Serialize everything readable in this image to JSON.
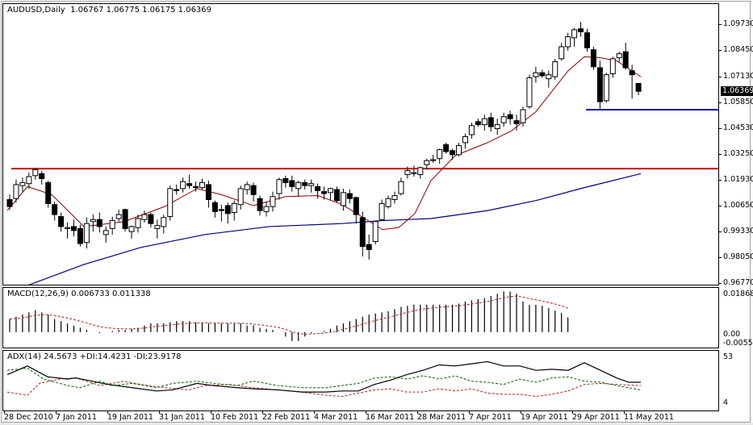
{
  "header": {
    "symbol": "AUDUSD,Daily",
    "ohlc": "1.06767 1.06775 1.06175 1.06369",
    "full_label": "AUDUSD,Daily  1.06767 1.06775 1.06175 1.06369"
  },
  "main_axis": {
    "labels": [
      "1.09730",
      "1.08450",
      "1.07130",
      "1.05850",
      "1.04530",
      "1.03250",
      "1.01930",
      "1.00650",
      "0.99330",
      "0.98050",
      "0.96770"
    ],
    "current_price": "1.06369"
  },
  "macd": {
    "label": "MACD(12,26,9) 0.006733 0.011338",
    "axis_labels": [
      "0.018682",
      "0.00",
      "-0.00556"
    ]
  },
  "adx": {
    "label": "ADX(14) 24.5673 +DI:14.4231 -DI:23.9178",
    "axis_labels": [
      "53",
      "4"
    ]
  },
  "x_axis": {
    "labels": [
      "28 Dec 2010",
      "7 Jan 2011",
      "19 Jan 2011",
      "31 Jan 2011",
      "10 Feb 2011",
      "22 Feb 2011",
      "4 Mar 2011",
      "16 Mar 2011",
      "28 Mar 2011",
      "7 Apr 2011",
      "19 Apr 2011",
      "29 Apr 2011",
      "11 May 2011"
    ]
  },
  "colors": {
    "bull_candle": "#ffffff",
    "bear_candle": "#000000",
    "ma_fast": "#8b0000",
    "ma_slow": "#000080",
    "resistance_line": "#cc0000",
    "support_line": "#0000aa",
    "macd_signal": "#b22222",
    "adx_main": "#000000",
    "plus_di": "#006400",
    "minus_di": "#b22222"
  },
  "chart_data": [
    {
      "type": "candlestick",
      "title": "AUDUSD,Daily",
      "ylim": [
        0.9677,
        1.0973
      ],
      "yticks": [
        1.0973,
        1.0845,
        1.0713,
        1.0585,
        1.0453,
        1.0325,
        1.0193,
        1.0065,
        0.9933,
        0.9805,
        0.9677
      ],
      "x_tick_labels": [
        "28 Dec 2010",
        "7 Jan 2011",
        "19 Jan 2011",
        "31 Jan 2011",
        "10 Feb 2011",
        "22 Feb 2011",
        "4 Mar 2011",
        "16 Mar 2011",
        "28 Mar 2011",
        "7 Apr 2011",
        "19 Apr 2011",
        "29 Apr 2011",
        "11 May 2011"
      ],
      "last_bar": {
        "open": 1.06767,
        "high": 1.06775,
        "low": 1.06175,
        "close": 1.06369
      },
      "horizontal_lines": [
        {
          "name": "resistance",
          "price": 1.025,
          "color": "#cc0000"
        },
        {
          "name": "support",
          "price": 1.0545,
          "color": "#0000aa"
        }
      ],
      "ohlc": [
        [
          1.0095,
          1.012,
          1.0045,
          1.006
        ],
        [
          1.01,
          1.0195,
          1.008,
          1.017
        ],
        [
          1.0165,
          1.0205,
          1.0135,
          1.018
        ],
        [
          1.0175,
          1.023,
          1.015,
          1.021
        ],
        [
          1.0215,
          1.0255,
          1.0195,
          1.0245
        ],
        [
          1.0225,
          1.024,
          1.017,
          1.02
        ],
        [
          1.018,
          1.019,
          1.0055,
          1.0075
        ],
        [
          1.007,
          1.0085,
          0.999,
          1.002
        ],
        [
          1.001,
          1.003,
          0.9935,
          0.996
        ],
        [
          0.995,
          0.998,
          0.99,
          0.9955
        ],
        [
          0.996,
          0.9995,
          0.991,
          0.994
        ],
        [
          0.995,
          0.997,
          0.986,
          0.9875
        ],
        [
          0.988,
          1.0005,
          0.985,
          0.9975
        ],
        [
          0.9985,
          1.002,
          0.9935,
          0.9995
        ],
        [
          0.9995,
          1.003,
          0.993,
          0.996
        ],
        [
          0.992,
          0.996,
          0.988,
          0.994
        ],
        [
          0.995,
          1.001,
          0.992,
          0.999
        ],
        [
          1.0,
          1.0045,
          0.9985,
          1.002
        ],
        [
          1.0045,
          1.005,
          0.9935,
          0.995
        ],
        [
          0.9935,
          0.9965,
          0.99,
          0.996
        ],
        [
          0.9955,
          1.002,
          0.993,
          1.0
        ],
        [
          0.9995,
          1.004,
          0.998,
          1.002
        ],
        [
          1.002,
          1.003,
          0.9955,
          0.9975
        ],
        [
          0.995,
          0.9995,
          0.99,
          0.9965
        ],
        [
          0.996,
          1.002,
          0.9925,
          1.0005
        ],
        [
          1.001,
          1.0165,
          0.999,
          1.015
        ],
        [
          1.0145,
          1.017,
          1.012,
          1.014
        ],
        [
          1.015,
          1.0205,
          1.013,
          1.0185
        ],
        [
          1.0175,
          1.022,
          1.015,
          1.0165
        ],
        [
          1.016,
          1.0185,
          1.0135,
          1.0155
        ],
        [
          1.0155,
          1.02,
          1.0145,
          1.018
        ],
        [
          1.017,
          1.019,
          1.0055,
          1.0095
        ],
        [
          1.008,
          1.009,
          1.0005,
          1.0035
        ],
        [
          1.0045,
          1.007,
          0.9985,
          1.004
        ],
        [
          1.0065,
          1.008,
          0.9975,
          1.0025
        ],
        [
          1.003,
          1.009,
          0.999,
          1.0075
        ],
        [
          1.007,
          1.0165,
          1.0045,
          1.015
        ],
        [
          1.0145,
          1.0185,
          1.012,
          1.017
        ],
        [
          1.0165,
          1.018,
          1.0085,
          1.012
        ],
        [
          1.01,
          1.0115,
          1.0015,
          1.004
        ],
        [
          1.0035,
          1.0085,
          1.001,
          1.006
        ],
        [
          1.006,
          1.0135,
          1.0035,
          1.011
        ],
        [
          1.0125,
          1.0205,
          1.0095,
          1.0195
        ],
        [
          1.02,
          1.0215,
          1.0155,
          1.018
        ],
        [
          1.019,
          1.0215,
          1.0135,
          1.016
        ],
        [
          1.015,
          1.019,
          1.011,
          1.018
        ],
        [
          1.018,
          1.0195,
          1.0145,
          1.0165
        ],
        [
          1.0165,
          1.0195,
          1.013,
          1.0175
        ],
        [
          1.016,
          1.0175,
          1.01,
          1.014
        ],
        [
          1.0135,
          1.016,
          1.0095,
          1.0125
        ],
        [
          1.013,
          1.0155,
          1.009,
          1.015
        ],
        [
          1.0145,
          1.016,
          1.008,
          1.009
        ],
        [
          1.0065,
          1.015,
          1.004,
          1.013
        ],
        [
          1.0125,
          1.0145,
          1.0075,
          1.01
        ],
        [
          1.0105,
          1.011,
          0.9975,
          1.002
        ],
        [
          1.0005,
          1.0035,
          0.981,
          0.986
        ],
        [
          0.987,
          0.992,
          0.9795,
          0.9845
        ],
        [
          0.9885,
          0.999,
          0.987,
          0.9985
        ],
        [
          0.9995,
          1.0095,
          0.999,
          1.0075
        ],
        [
          1.006,
          1.0115,
          1.005,
          1.01
        ],
        [
          1.0095,
          1.0135,
          1.0075,
          1.0115
        ],
        [
          1.0125,
          1.0205,
          1.0115,
          1.0185
        ],
        [
          1.022,
          1.026,
          1.02,
          1.024
        ],
        [
          1.0225,
          1.0265,
          1.021,
          1.023
        ],
        [
          1.022,
          1.026,
          1.02,
          1.0255
        ],
        [
          1.027,
          1.03,
          1.0245,
          1.029
        ],
        [
          1.029,
          1.032,
          1.028,
          1.0295
        ],
        [
          1.03,
          1.035,
          1.0275,
          1.0345
        ],
        [
          1.037,
          1.038,
          1.0325,
          1.0335
        ],
        [
          1.034,
          1.035,
          1.0295,
          1.032
        ],
        [
          1.032,
          1.038,
          1.031,
          1.0365
        ],
        [
          1.038,
          1.0425,
          1.035,
          1.041
        ],
        [
          1.042,
          1.048,
          1.04,
          1.0465
        ],
        [
          1.0485,
          1.05,
          1.046,
          1.047
        ],
        [
          1.047,
          1.052,
          1.044,
          1.05
        ],
        [
          1.0505,
          1.053,
          1.0435,
          1.046
        ],
        [
          1.045,
          1.05,
          1.042,
          1.047
        ],
        [
          1.048,
          1.053,
          1.046,
          1.051
        ],
        [
          1.052,
          1.054,
          1.047,
          1.05
        ],
        [
          1.049,
          1.052,
          1.044,
          1.0475
        ],
        [
          1.048,
          1.056,
          1.046,
          1.0545
        ],
        [
          1.056,
          1.072,
          1.055,
          1.0705
        ],
        [
          1.071,
          1.076,
          1.068,
          1.073
        ],
        [
          1.073,
          1.0745,
          1.0705,
          1.0715
        ],
        [
          1.07,
          1.074,
          1.0655,
          1.072
        ],
        [
          1.071,
          1.08,
          1.0695,
          1.0785
        ],
        [
          1.08,
          1.088,
          1.079,
          1.086
        ],
        [
          1.086,
          1.093,
          1.084,
          1.091
        ],
        [
          1.0905,
          1.0955,
          1.086,
          1.0945
        ],
        [
          1.095,
          1.0985,
          1.091,
          1.0935
        ],
        [
          1.093,
          1.095,
          1.0835,
          1.0855
        ],
        [
          1.0845,
          1.086,
          1.0745,
          1.076
        ],
        [
          1.0755,
          1.079,
          1.0545,
          1.0585
        ],
        [
          1.059,
          1.073,
          1.058,
          1.072
        ],
        [
          1.0725,
          1.081,
          1.0705,
          1.08
        ],
        [
          1.0805,
          1.0835,
          1.0785,
          1.0825
        ],
        [
          1.0835,
          1.088,
          1.0745,
          1.0755
        ],
        [
          1.074,
          1.077,
          1.06,
          1.072
        ],
        [
          1.06767,
          1.06775,
          1.06175,
          1.06369
        ]
      ],
      "ma_fast_approx": [
        [
          5,
          1.004
        ],
        [
          30,
          1.016
        ],
        [
          60,
          1.012
        ],
        [
          100,
          0.996
        ],
        [
          150,
          0.9985
        ],
        [
          200,
          1.006
        ],
        [
          240,
          1.015
        ],
        [
          270,
          1.012
        ],
        [
          310,
          1.0065
        ],
        [
          350,
          1.011
        ],
        [
          390,
          1.0115
        ],
        [
          420,
          1.007
        ],
        [
          450,
          0.9995
        ],
        [
          470,
          0.9945
        ],
        [
          490,
          0.9955
        ],
        [
          510,
          1.0025
        ],
        [
          530,
          1.019
        ],
        [
          560,
          1.0315
        ],
        [
          600,
          1.038
        ],
        [
          630,
          1.044
        ],
        [
          660,
          1.0535
        ],
        [
          700,
          1.074
        ],
        [
          720,
          1.081
        ],
        [
          740,
          1.0805
        ],
        [
          760,
          1.079
        ],
        [
          790,
          1.071
        ]
      ],
      "ma_slow_approx": [
        [
          30,
          0.9665
        ],
        [
          100,
          0.977
        ],
        [
          170,
          0.9855
        ],
        [
          250,
          0.992
        ],
        [
          330,
          0.996
        ],
        [
          420,
          0.9975
        ],
        [
          470,
          0.999
        ],
        [
          530,
          1.0
        ],
        [
          600,
          1.004
        ],
        [
          660,
          1.009
        ],
        [
          720,
          1.0155
        ],
        [
          790,
          1.0225
        ]
      ]
    },
    {
      "type": "bar",
      "title": "MACD(12,26,9)",
      "main": 0.006733,
      "signal": 0.011338,
      "ylim": [
        -0.00556,
        0.018682
      ],
      "histogram_approx": [
        0.006,
        0.007,
        0.008,
        0.009,
        0.01,
        0.009,
        0.008,
        0.006,
        0.005,
        0.004,
        0.003,
        0.002,
        0.001,
        0.0,
        -0.0005,
        0.0,
        0.0005,
        0.001,
        0.001,
        0.0015,
        0.002,
        0.003,
        0.004,
        0.004,
        0.004,
        0.0045,
        0.005,
        0.005,
        0.005,
        0.0045,
        0.0045,
        0.004,
        0.004,
        0.004,
        0.004,
        0.004,
        0.004,
        0.003,
        0.003,
        0.002,
        0.0015,
        0.001,
        0.0,
        -0.002,
        -0.004,
        -0.004,
        -0.002,
        -0.0005,
        0.0,
        0.0005,
        0.0015,
        0.003,
        0.004,
        0.005,
        0.006,
        0.007,
        0.008,
        0.0085,
        0.009,
        0.0095,
        0.0105,
        0.0115,
        0.012,
        0.0125,
        0.0125,
        0.0125,
        0.0125,
        0.0125,
        0.0125,
        0.0125,
        0.013,
        0.014,
        0.0145,
        0.015,
        0.0155,
        0.0165,
        0.0175,
        0.0185,
        0.0185,
        0.0175,
        0.014,
        0.0125,
        0.0125,
        0.012,
        0.011,
        0.0098,
        0.0087,
        0.0067
      ]
    },
    {
      "type": "line",
      "title": "ADX(14)",
      "series": [
        {
          "name": "ADX",
          "last": 24.5673
        },
        {
          "name": "+DI",
          "last": 14.4231
        },
        {
          "name": "-DI",
          "last": 23.9178
        }
      ],
      "ylim": [
        4,
        53
      ]
    }
  ]
}
